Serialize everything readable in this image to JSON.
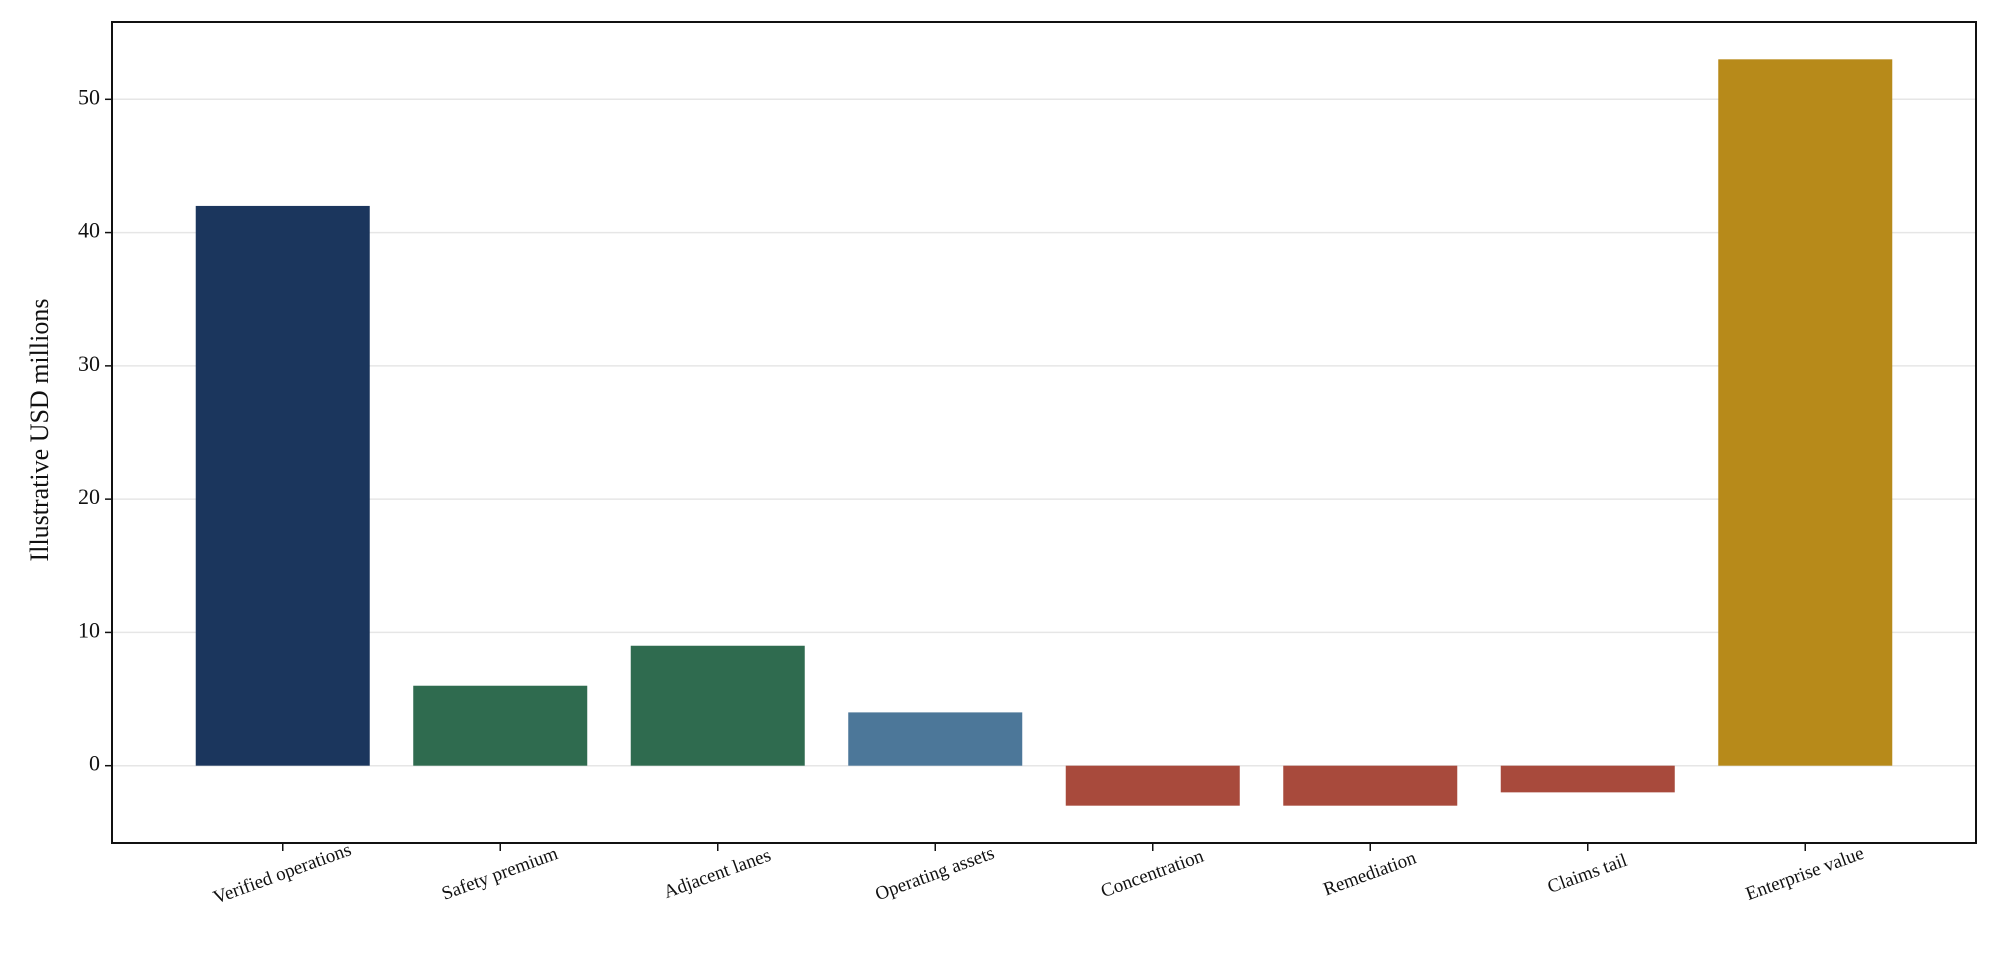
{
  "chart_data": {
    "type": "bar",
    "y_label": "Illustrative USD millions",
    "categories": [
      "Verified operations",
      "Safety premium",
      "Adjacent lanes",
      "Operating assets",
      "Concentration",
      "Remediation",
      "Claims tail",
      "Enterprise value"
    ],
    "values": [
      42,
      6,
      9,
      4,
      -3,
      -3,
      -2,
      53
    ],
    "colors": [
      "#1b365d",
      "#2f6b4f",
      "#2f6b4f",
      "#4c7799",
      "#a84a3c",
      "#a84a3c",
      "#a84a3c",
      "#b78a1a"
    ],
    "ylim": [
      -5.8,
      55.8
    ],
    "yticks": [
      0,
      10,
      20,
      30,
      40,
      50
    ],
    "grid": true
  }
}
